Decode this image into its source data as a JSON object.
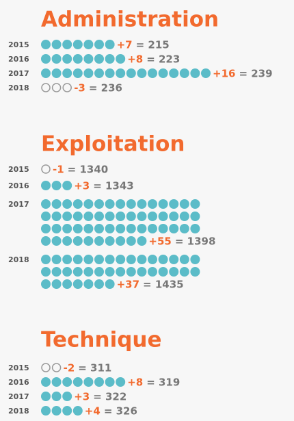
{
  "chart_data": [
    {
      "type": "dot",
      "title": "Administration",
      "categories": [
        "2015",
        "2016",
        "2017",
        "2018"
      ],
      "values": [
        7,
        8,
        16,
        -3
      ],
      "value_labels": [
        "+7",
        "+8",
        "+16",
        "-3"
      ],
      "totals": [
        215,
        223,
        239,
        236
      ],
      "total_labels": [
        "= 215",
        "= 223",
        "= 239",
        "= 236"
      ],
      "color": "#5bbcc8"
    },
    {
      "type": "dot",
      "title": "Exploitation",
      "categories": [
        "2015",
        "2016",
        "2017",
        "2018"
      ],
      "values": [
        -1,
        3,
        55,
        37
      ],
      "value_labels": [
        "-1",
        "+3",
        "+55",
        "+37"
      ],
      "totals": [
        1340,
        1343,
        1398,
        1435
      ],
      "total_labels": [
        "= 1340",
        "= 1343",
        "= 1398",
        "= 1435"
      ],
      "color": "#5bbcc8"
    },
    {
      "type": "dot",
      "title": "Technique",
      "categories": [
        "2015",
        "2016",
        "2017",
        "2018"
      ],
      "values": [
        -2,
        8,
        3,
        4
      ],
      "value_labels": [
        "-2",
        "+8",
        "+3",
        "+4"
      ],
      "totals": [
        311,
        319,
        322,
        326
      ],
      "total_labels": [
        "= 311",
        "= 319",
        "= 322",
        "= 326"
      ],
      "color": "#5bbcc8"
    }
  ]
}
